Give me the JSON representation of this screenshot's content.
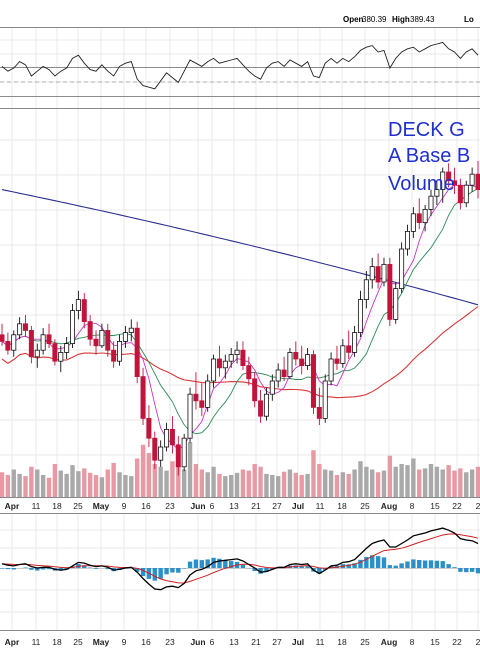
{
  "header": {
    "open_label": "Open",
    "open_value": "380.39",
    "high_label": "High",
    "high_value": "389.43",
    "low_label_partial": "Lo"
  },
  "annotation": {
    "lines": [
      "DECK G",
      "A Base B",
      "Volume"
    ]
  },
  "colors": {
    "up": "#111111",
    "down": "#c0143c",
    "ma_long": "#2b2f8f",
    "ma_mid": "#d83838",
    "ma_fast": "#2e8b57",
    "ma_faster": "#c934c9",
    "vol_up": "#a9a9a9",
    "vol_down": "#e89aa4",
    "macd_line": "#000000",
    "signal_line": "#d02020",
    "histogram": "#2b8fc9",
    "rsi_line": "#222222",
    "annotation": "#1f2fd0"
  },
  "chart_data": {
    "type": "candlestick",
    "x_tick_labels": [
      "Apr",
      "11",
      "18",
      "25",
      "May",
      "9",
      "16",
      "23",
      "Jun",
      "6",
      "13",
      "21",
      "27",
      "Jul",
      "11",
      "18",
      "25",
      "Aug",
      "8",
      "15",
      "22",
      "2"
    ],
    "bold_tick_labels": [
      "Apr",
      "May",
      "Jun",
      "Jul",
      "Aug"
    ],
    "x_tick_positions": [
      12,
      36,
      57,
      78,
      101,
      124,
      146,
      170,
      198,
      212,
      234,
      256,
      277,
      298,
      320,
      342,
      365,
      389,
      412,
      435,
      457,
      478
    ],
    "candles": [
      [
        336,
        341,
        331,
        333
      ],
      [
        333,
        337,
        327,
        329
      ],
      [
        329,
        338,
        326,
        336
      ],
      [
        336,
        344,
        334,
        341
      ],
      [
        341,
        345,
        335,
        338
      ],
      [
        338,
        340,
        323,
        326
      ],
      [
        326,
        332,
        321,
        329
      ],
      [
        329,
        339,
        327,
        336
      ],
      [
        336,
        341,
        330,
        332
      ],
      [
        332,
        334,
        322,
        324
      ],
      [
        324,
        331,
        319,
        328
      ],
      [
        328,
        335,
        325,
        332
      ],
      [
        332,
        350,
        330,
        347
      ],
      [
        347,
        356,
        343,
        352
      ],
      [
        352,
        355,
        339,
        342
      ],
      [
        342,
        345,
        331,
        334
      ],
      [
        334,
        338,
        327,
        331
      ],
      [
        331,
        341,
        330,
        338
      ],
      [
        338,
        341,
        326,
        329
      ],
      [
        329,
        333,
        321,
        324
      ],
      [
        324,
        336,
        322,
        333
      ],
      [
        333,
        340,
        330,
        337
      ],
      [
        337,
        343,
        333,
        339
      ],
      [
        339,
        342,
        314,
        317
      ],
      [
        317,
        321,
        295,
        298
      ],
      [
        298,
        304,
        285,
        289
      ],
      [
        289,
        292,
        275,
        279
      ],
      [
        279,
        288,
        276,
        285
      ],
      [
        285,
        296,
        283,
        293
      ],
      [
        293,
        299,
        282,
        286
      ],
      [
        286,
        290,
        272,
        276
      ],
      [
        276,
        291,
        274,
        289
      ],
      [
        289,
        312,
        287,
        309
      ],
      [
        309,
        319,
        302,
        306
      ],
      [
        306,
        314,
        299,
        303
      ],
      [
        303,
        318,
        301,
        315
      ],
      [
        315,
        327,
        312,
        325
      ],
      [
        325,
        331,
        317,
        321
      ],
      [
        321,
        327,
        316,
        324
      ],
      [
        324,
        330,
        321,
        327
      ],
      [
        327,
        333,
        323,
        329
      ],
      [
        329,
        333,
        320,
        322
      ],
      [
        322,
        326,
        313,
        316
      ],
      [
        316,
        319,
        303,
        306
      ],
      [
        306,
        311,
        296,
        299
      ],
      [
        299,
        312,
        297,
        309
      ],
      [
        309,
        318,
        306,
        315
      ],
      [
        315,
        323,
        312,
        320
      ],
      [
        320,
        326,
        315,
        317
      ],
      [
        317,
        330,
        316,
        328
      ],
      [
        328,
        333,
        322,
        325
      ],
      [
        325,
        331,
        318,
        322
      ],
      [
        322,
        330,
        320,
        327
      ],
      [
        327,
        329,
        300,
        303
      ],
      [
        303,
        312,
        295,
        298
      ],
      [
        298,
        318,
        296,
        315
      ],
      [
        315,
        328,
        313,
        325
      ],
      [
        325,
        331,
        320,
        323
      ],
      [
        323,
        334,
        321,
        331
      ],
      [
        331,
        338,
        325,
        328
      ],
      [
        328,
        340,
        326,
        337
      ],
      [
        337,
        356,
        335,
        352
      ],
      [
        352,
        365,
        348,
        361
      ],
      [
        361,
        371,
        357,
        367
      ],
      [
        367,
        373,
        357,
        360
      ],
      [
        360,
        371,
        358,
        368
      ],
      [
        368,
        371,
        340,
        343
      ],
      [
        343,
        360,
        341,
        357
      ],
      [
        357,
        378,
        355,
        375
      ],
      [
        375,
        386,
        372,
        383
      ],
      [
        383,
        394,
        380,
        391
      ],
      [
        391,
        398,
        384,
        387
      ],
      [
        387,
        395,
        383,
        393
      ],
      [
        393,
        402,
        390,
        399
      ],
      [
        399,
        406,
        395,
        402
      ],
      [
        402,
        412,
        396,
        410
      ],
      [
        410,
        414,
        403,
        406
      ],
      [
        406,
        412,
        400,
        404
      ],
      [
        404,
        407,
        393,
        396
      ],
      [
        396,
        406,
        394,
        404
      ],
      [
        404,
        412,
        401,
        409
      ],
      [
        409,
        415,
        398,
        402
      ]
    ],
    "volume_relative": [
      0.45,
      0.4,
      0.5,
      0.42,
      0.38,
      0.55,
      0.5,
      0.4,
      0.35,
      0.6,
      0.48,
      0.42,
      0.58,
      0.47,
      0.52,
      0.44,
      0.4,
      0.36,
      0.5,
      0.62,
      0.45,
      0.4,
      0.38,
      0.7,
      0.95,
      0.8,
      0.6,
      0.55,
      0.48,
      0.65,
      0.75,
      0.5,
      1.0,
      0.6,
      0.5,
      0.45,
      0.55,
      0.42,
      0.38,
      0.4,
      0.44,
      0.5,
      0.48,
      0.6,
      0.55,
      0.42,
      0.4,
      0.38,
      0.46,
      0.5,
      0.44,
      0.4,
      0.42,
      0.85,
      0.6,
      0.5,
      0.48,
      0.4,
      0.45,
      0.42,
      0.5,
      0.65,
      0.55,
      0.5,
      0.45,
      0.48,
      0.75,
      0.55,
      0.6,
      0.58,
      0.7,
      0.5,
      0.52,
      0.6,
      0.55,
      0.5,
      0.58,
      0.48,
      0.52,
      0.45,
      0.5,
      0.55
    ],
    "rsi": [
      52,
      46,
      50,
      58,
      54,
      40,
      46,
      52,
      48,
      40,
      46,
      50,
      62,
      66,
      56,
      48,
      46,
      54,
      46,
      40,
      52,
      56,
      58,
      36,
      28,
      26,
      24,
      34,
      44,
      38,
      32,
      46,
      60,
      56,
      52,
      58,
      62,
      56,
      58,
      60,
      62,
      54,
      46,
      40,
      36,
      50,
      56,
      58,
      52,
      60,
      56,
      52,
      58,
      40,
      38,
      56,
      62,
      56,
      62,
      58,
      64,
      72,
      76,
      78,
      70,
      72,
      50,
      62,
      70,
      74,
      76,
      70,
      74,
      78,
      80,
      82,
      74,
      70,
      62,
      70,
      74,
      66
    ],
    "macd": [
      0.6,
      0.4,
      0.3,
      0.5,
      0.6,
      0.2,
      0.0,
      0.1,
      0.1,
      -0.2,
      -0.3,
      -0.2,
      0.3,
      0.8,
      0.7,
      0.4,
      0.2,
      0.3,
      0.1,
      -0.3,
      -0.2,
      0.0,
      0.1,
      -0.6,
      -1.5,
      -2.3,
      -3.0,
      -3.1,
      -2.7,
      -2.6,
      -2.8,
      -2.2,
      -1.0,
      -0.4,
      -0.2,
      0.2,
      0.8,
      1.0,
      1.1,
      1.2,
      1.3,
      1.0,
      0.5,
      0.0,
      -0.6,
      -0.5,
      -0.2,
      0.1,
      0.1,
      0.5,
      0.6,
      0.5,
      0.6,
      -0.3,
      -0.8,
      -0.3,
      0.3,
      0.4,
      0.8,
      0.9,
      1.2,
      2.0,
      2.8,
      3.5,
      3.8,
      4.0,
      3.0,
      3.0,
      3.5,
      4.0,
      4.6,
      4.8,
      5.0,
      5.3,
      5.5,
      5.7,
      5.4,
      5.0,
      4.2,
      4.0,
      3.9,
      3.5
    ]
  }
}
